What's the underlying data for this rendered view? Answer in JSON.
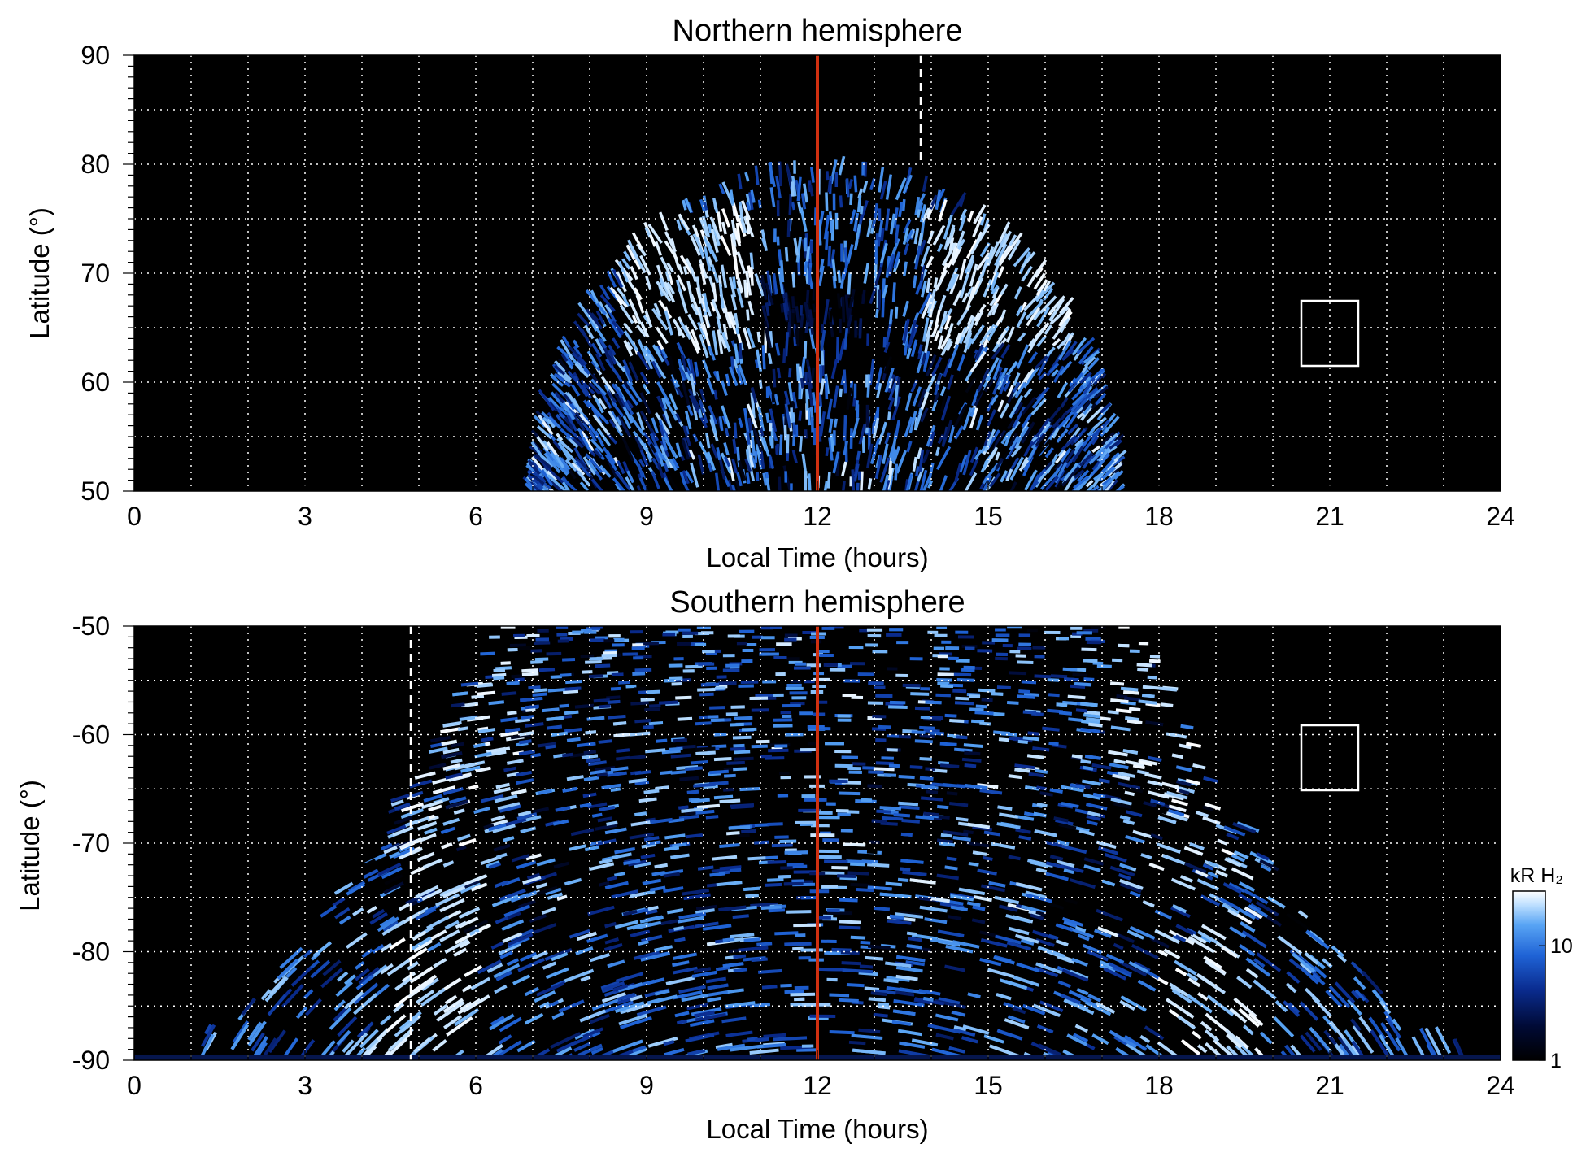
{
  "chart_data": [
    {
      "type": "heatmap",
      "title": "Northern hemisphere",
      "xlabel": "Local Time (hours)",
      "ylabel": "Latitude (°)",
      "xlim": [
        0,
        24
      ],
      "ylim": [
        50,
        90
      ],
      "xticks": [
        0,
        3,
        6,
        9,
        12,
        15,
        18,
        21,
        24
      ],
      "yticks": [
        50,
        60,
        70,
        80,
        90
      ],
      "grid": true,
      "background": "#000000",
      "emission_lt_range": [
        7.0,
        17.3
      ],
      "emission_max_lat": 80,
      "bright_oval": {
        "lat_range": [
          63,
          76
        ],
        "lt_peaks": [
          9.8,
          15.2
        ],
        "dim_band_lt": [
          11.0,
          13.0
        ]
      },
      "noon_line_lt": 12,
      "dashed_line": {
        "lt": 13.85,
        "lat_range": [
          80,
          90
        ]
      },
      "box": {
        "lt_range": [
          20.5,
          21.5
        ],
        "lat_range": [
          61.5,
          67.5
        ]
      }
    },
    {
      "type": "heatmap",
      "title": "Southern hemisphere",
      "xlabel": "Local Time (hours)",
      "ylabel": "Latitude (°)",
      "xlim": [
        0,
        24
      ],
      "ylim": [
        -90,
        -50
      ],
      "xticks": [
        0,
        3,
        6,
        9,
        12,
        15,
        18,
        21,
        24
      ],
      "yticks": [
        -90,
        -80,
        -70,
        -60,
        -50
      ],
      "grid": true,
      "background": "#000000",
      "bright_oval": {
        "lt_peaks": [
          6.2,
          17.8
        ],
        "lat_range": [
          -90,
          -50
        ]
      },
      "noon_line_lt": 12,
      "dashed_line": {
        "lt": 4.85,
        "lat_range": [
          -90,
          -50
        ]
      },
      "box": {
        "lt_range": [
          20.5,
          21.5
        ],
        "lat_range": [
          -65,
          -59
        ]
      },
      "colorbar": {
        "label": "kR H₂",
        "scale": "log",
        "range": [
          1,
          30
        ],
        "ticks": [
          1,
          10
        ]
      }
    }
  ],
  "colors": {
    "noon_line": "#d03010",
    "grid": "#ffffff",
    "cmap": [
      "#000000",
      "#000a35",
      "#0a2c90",
      "#1f63d6",
      "#58a4f4",
      "#bfe0ff",
      "#ffffff"
    ]
  }
}
